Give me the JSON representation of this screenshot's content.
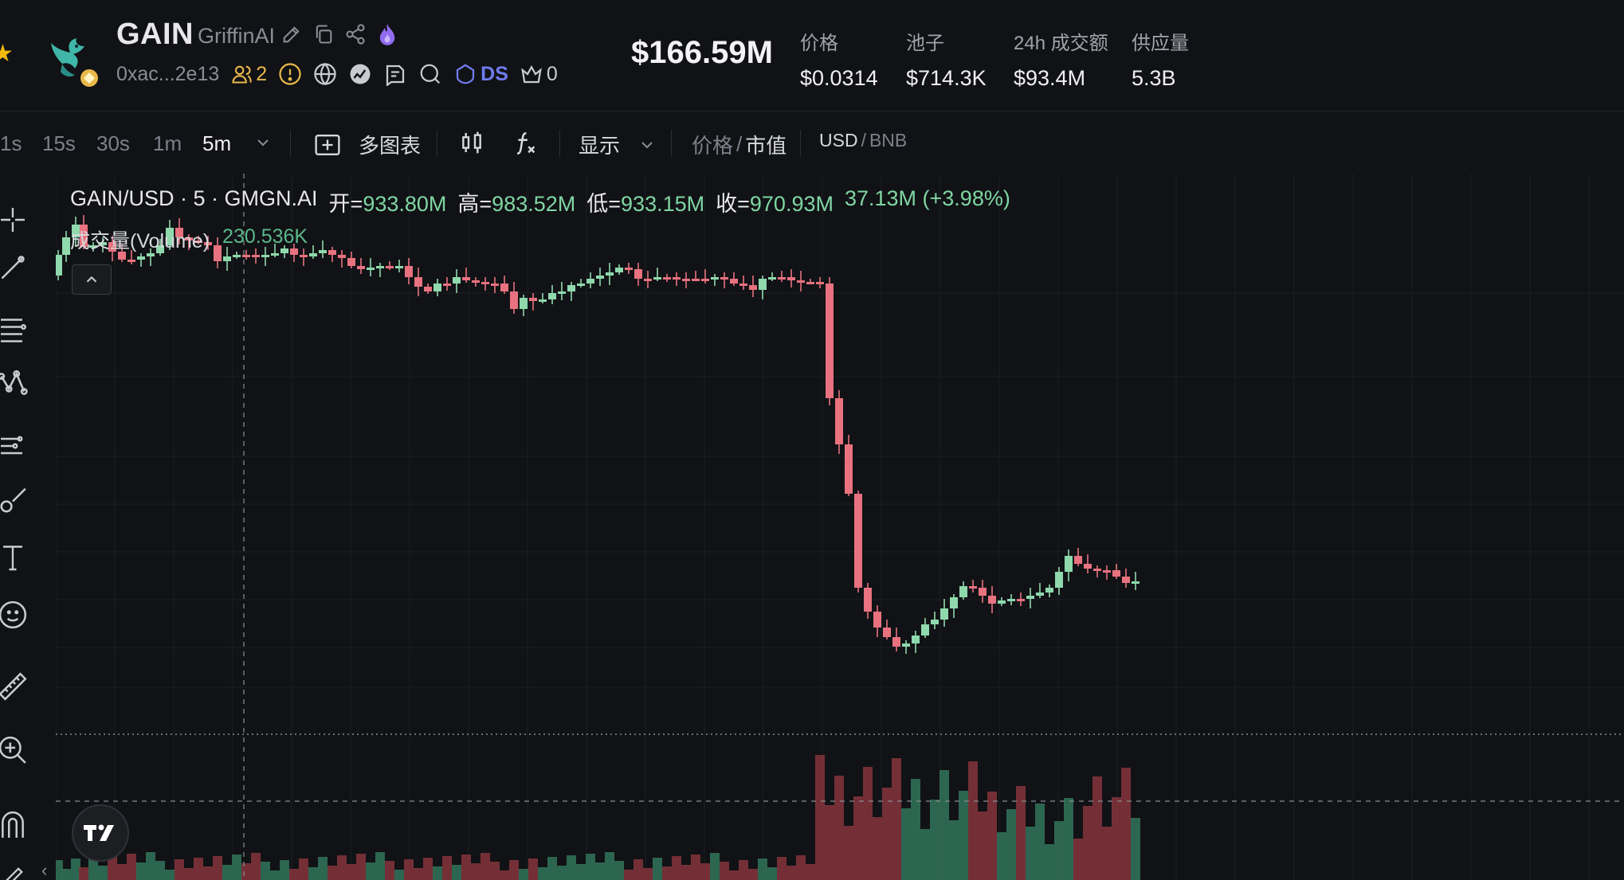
{
  "header": {
    "symbol": "GAIN",
    "name": "GriffinAI",
    "address": "0xac...2e13",
    "holders_count": "2",
    "ds_label": "DS",
    "crown_count": "0",
    "market_cap": "$166.59M",
    "stats": [
      {
        "label": "价格",
        "value": "$0.0314"
      },
      {
        "label": "池子",
        "value": "$714.3K"
      },
      {
        "label": "24h 成交额",
        "value": "$93.4M"
      },
      {
        "label": "供应量",
        "value": "5.3B"
      }
    ],
    "icons": [
      "star-icon",
      "edit-icon",
      "copy-icon",
      "share-icon",
      "fire-icon",
      "holders-icon",
      "warning-icon",
      "globe-icon",
      "chart-icon",
      "post-icon",
      "search-icon",
      "ds-icon",
      "crown-icon"
    ]
  },
  "toolbar": {
    "timeframes": [
      "1s",
      "15s",
      "30s",
      "1m",
      "5m"
    ],
    "active_timeframe": "5m",
    "multi_chart": "多图表",
    "display": "显示",
    "price_label": "价格",
    "slash": "/",
    "mcap_label": "市值",
    "usd_label": "USD",
    "bnb_label": "BNB"
  },
  "chart": {
    "pair": "GAIN/USD · 5 · GMGN.AI",
    "open_label": "开=",
    "open": "933.80M",
    "high_label": "高=",
    "high": "983.52M",
    "low_label": "低=",
    "low": "933.15M",
    "close_label": "收=",
    "close": "970.93M",
    "change": "37.13M (+3.98%)",
    "volume_label": "成交量(Volume)",
    "volume_value": "230.536K",
    "colors": {
      "up": "#8fd9ad",
      "down": "#e8727f",
      "up_vol": "#2f6b53",
      "down_vol": "#7a3238",
      "bg": "#111215"
    }
  },
  "chart_data": {
    "type": "candlestick",
    "title": "GAIN/USD · 5 · GMGN.AI",
    "ohlc_open": 933.8,
    "ohlc_high": 983.52,
    "ohlc_low": 933.15,
    "ohlc_close": 970.93,
    "volume_last": "230.536K",
    "note_units": "market cap in M USD"
  }
}
